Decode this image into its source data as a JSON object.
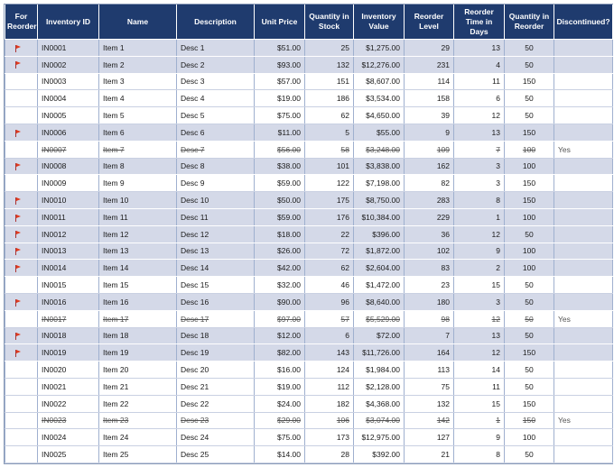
{
  "headers": [
    "For Reorder",
    "Inventory ID",
    "Name",
    "Description",
    "Unit Price",
    "Quantity in Stock",
    "Inventory Value",
    "Reorder Level",
    "Reorder Time in Days",
    "Quantity in Reorder",
    "Discontinued?"
  ],
  "colors": {
    "header_bg": "#1f3b6e",
    "row_shaded": "#d4d9e8",
    "flag": "#e03a1e"
  },
  "rows": [
    {
      "flag": true,
      "id": "IN0001",
      "name": "Item 1",
      "desc": "Desc 1",
      "price": "$51.00",
      "qty": "25",
      "value": "$1,275.00",
      "level": "29",
      "days": "13",
      "reorder_qty": "50",
      "disc": ""
    },
    {
      "flag": true,
      "id": "IN0002",
      "name": "Item 2",
      "desc": "Desc 2",
      "price": "$93.00",
      "qty": "132",
      "value": "$12,276.00",
      "level": "231",
      "days": "4",
      "reorder_qty": "50",
      "disc": ""
    },
    {
      "flag": false,
      "id": "IN0003",
      "name": "Item 3",
      "desc": "Desc 3",
      "price": "$57.00",
      "qty": "151",
      "value": "$8,607.00",
      "level": "114",
      "days": "11",
      "reorder_qty": "150",
      "disc": ""
    },
    {
      "flag": false,
      "id": "IN0004",
      "name": "Item 4",
      "desc": "Desc 4",
      "price": "$19.00",
      "qty": "186",
      "value": "$3,534.00",
      "level": "158",
      "days": "6",
      "reorder_qty": "50",
      "disc": ""
    },
    {
      "flag": false,
      "id": "IN0005",
      "name": "Item 5",
      "desc": "Desc 5",
      "price": "$75.00",
      "qty": "62",
      "value": "$4,650.00",
      "level": "39",
      "days": "12",
      "reorder_qty": "50",
      "disc": ""
    },
    {
      "flag": true,
      "id": "IN0006",
      "name": "Item 6",
      "desc": "Desc 6",
      "price": "$11.00",
      "qty": "5",
      "value": "$55.00",
      "level": "9",
      "days": "13",
      "reorder_qty": "150",
      "disc": ""
    },
    {
      "flag": false,
      "id": "IN0007",
      "name": "Item 7",
      "desc": "Desc 7",
      "price": "$56.00",
      "qty": "58",
      "value": "$3,248.00",
      "level": "109",
      "days": "7",
      "reorder_qty": "100",
      "disc": "Yes"
    },
    {
      "flag": true,
      "id": "IN0008",
      "name": "Item 8",
      "desc": "Desc 8",
      "price": "$38.00",
      "qty": "101",
      "value": "$3,838.00",
      "level": "162",
      "days": "3",
      "reorder_qty": "100",
      "disc": ""
    },
    {
      "flag": false,
      "id": "IN0009",
      "name": "Item 9",
      "desc": "Desc 9",
      "price": "$59.00",
      "qty": "122",
      "value": "$7,198.00",
      "level": "82",
      "days": "3",
      "reorder_qty": "150",
      "disc": ""
    },
    {
      "flag": true,
      "id": "IN0010",
      "name": "Item 10",
      "desc": "Desc 10",
      "price": "$50.00",
      "qty": "175",
      "value": "$8,750.00",
      "level": "283",
      "days": "8",
      "reorder_qty": "150",
      "disc": ""
    },
    {
      "flag": true,
      "id": "IN0011",
      "name": "Item 11",
      "desc": "Desc 11",
      "price": "$59.00",
      "qty": "176",
      "value": "$10,384.00",
      "level": "229",
      "days": "1",
      "reorder_qty": "100",
      "disc": ""
    },
    {
      "flag": true,
      "id": "IN0012",
      "name": "Item 12",
      "desc": "Desc 12",
      "price": "$18.00",
      "qty": "22",
      "value": "$396.00",
      "level": "36",
      "days": "12",
      "reorder_qty": "50",
      "disc": ""
    },
    {
      "flag": true,
      "id": "IN0013",
      "name": "Item 13",
      "desc": "Desc 13",
      "price": "$26.00",
      "qty": "72",
      "value": "$1,872.00",
      "level": "102",
      "days": "9",
      "reorder_qty": "100",
      "disc": ""
    },
    {
      "flag": true,
      "id": "IN0014",
      "name": "Item 14",
      "desc": "Desc 14",
      "price": "$42.00",
      "qty": "62",
      "value": "$2,604.00",
      "level": "83",
      "days": "2",
      "reorder_qty": "100",
      "disc": ""
    },
    {
      "flag": false,
      "id": "IN0015",
      "name": "Item 15",
      "desc": "Desc 15",
      "price": "$32.00",
      "qty": "46",
      "value": "$1,472.00",
      "level": "23",
      "days": "15",
      "reorder_qty": "50",
      "disc": ""
    },
    {
      "flag": true,
      "id": "IN0016",
      "name": "Item 16",
      "desc": "Desc 16",
      "price": "$90.00",
      "qty": "96",
      "value": "$8,640.00",
      "level": "180",
      "days": "3",
      "reorder_qty": "50",
      "disc": ""
    },
    {
      "flag": false,
      "id": "IN0017",
      "name": "Item 17",
      "desc": "Desc 17",
      "price": "$97.00",
      "qty": "57",
      "value": "$5,529.00",
      "level": "98",
      "days": "12",
      "reorder_qty": "50",
      "disc": "Yes"
    },
    {
      "flag": true,
      "id": "IN0018",
      "name": "Item 18",
      "desc": "Desc 18",
      "price": "$12.00",
      "qty": "6",
      "value": "$72.00",
      "level": "7",
      "days": "13",
      "reorder_qty": "50",
      "disc": ""
    },
    {
      "flag": true,
      "id": "IN0019",
      "name": "Item 19",
      "desc": "Desc 19",
      "price": "$82.00",
      "qty": "143",
      "value": "$11,726.00",
      "level": "164",
      "days": "12",
      "reorder_qty": "150",
      "disc": ""
    },
    {
      "flag": false,
      "id": "IN0020",
      "name": "Item 20",
      "desc": "Desc 20",
      "price": "$16.00",
      "qty": "124",
      "value": "$1,984.00",
      "level": "113",
      "days": "14",
      "reorder_qty": "50",
      "disc": ""
    },
    {
      "flag": false,
      "id": "IN0021",
      "name": "Item 21",
      "desc": "Desc 21",
      "price": "$19.00",
      "qty": "112",
      "value": "$2,128.00",
      "level": "75",
      "days": "11",
      "reorder_qty": "50",
      "disc": ""
    },
    {
      "flag": false,
      "id": "IN0022",
      "name": "Item 22",
      "desc": "Desc 22",
      "price": "$24.00",
      "qty": "182",
      "value": "$4,368.00",
      "level": "132",
      "days": "15",
      "reorder_qty": "150",
      "disc": ""
    },
    {
      "flag": false,
      "id": "IN0023",
      "name": "Item 23",
      "desc": "Desc 23",
      "price": "$29.00",
      "qty": "106",
      "value": "$3,074.00",
      "level": "142",
      "days": "1",
      "reorder_qty": "150",
      "disc": "Yes"
    },
    {
      "flag": false,
      "id": "IN0024",
      "name": "Item 24",
      "desc": "Desc 24",
      "price": "$75.00",
      "qty": "173",
      "value": "$12,975.00",
      "level": "127",
      "days": "9",
      "reorder_qty": "100",
      "disc": ""
    },
    {
      "flag": false,
      "id": "IN0025",
      "name": "Item 25",
      "desc": "Desc 25",
      "price": "$14.00",
      "qty": "28",
      "value": "$392.00",
      "level": "21",
      "days": "8",
      "reorder_qty": "50",
      "disc": ""
    }
  ]
}
